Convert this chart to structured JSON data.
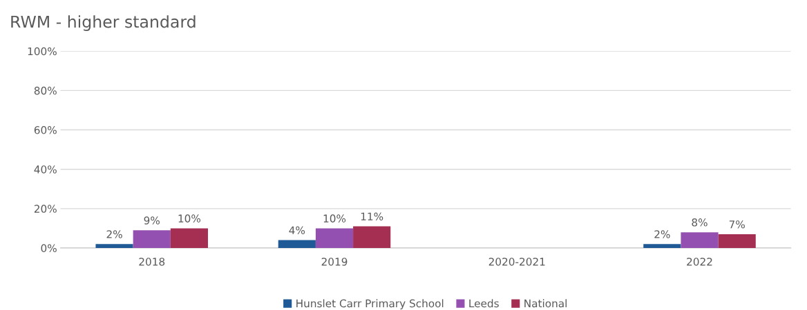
{
  "chart_data": {
    "type": "bar",
    "title": "RWM - higher standard",
    "categories": [
      "2018",
      "2019",
      "2020-2021",
      "2022"
    ],
    "series": [
      {
        "name": "Hunslet Carr Primary School",
        "color": "#1f5a96",
        "values": [
          2,
          4,
          null,
          2
        ],
        "value_labels": [
          "2%",
          "4%",
          null,
          "2%"
        ]
      },
      {
        "name": "Leeds",
        "color": "#9450b0",
        "values": [
          9,
          10,
          null,
          8
        ],
        "value_labels": [
          "9%",
          "10%",
          null,
          "8%"
        ]
      },
      {
        "name": "National",
        "color": "#a52f52",
        "values": [
          10,
          11,
          null,
          7
        ],
        "value_labels": [
          "10%",
          "11%",
          null,
          "7%"
        ]
      }
    ],
    "ylim": [
      0,
      100
    ],
    "yticks": [
      {
        "value": 0,
        "label": "0%"
      },
      {
        "value": 20,
        "label": "20%"
      },
      {
        "value": 40,
        "label": "40%"
      },
      {
        "value": 60,
        "label": "60%"
      },
      {
        "value": 80,
        "label": "80%"
      },
      {
        "value": 100,
        "label": "100%"
      }
    ],
    "grid": "y",
    "legend": "bottom"
  }
}
